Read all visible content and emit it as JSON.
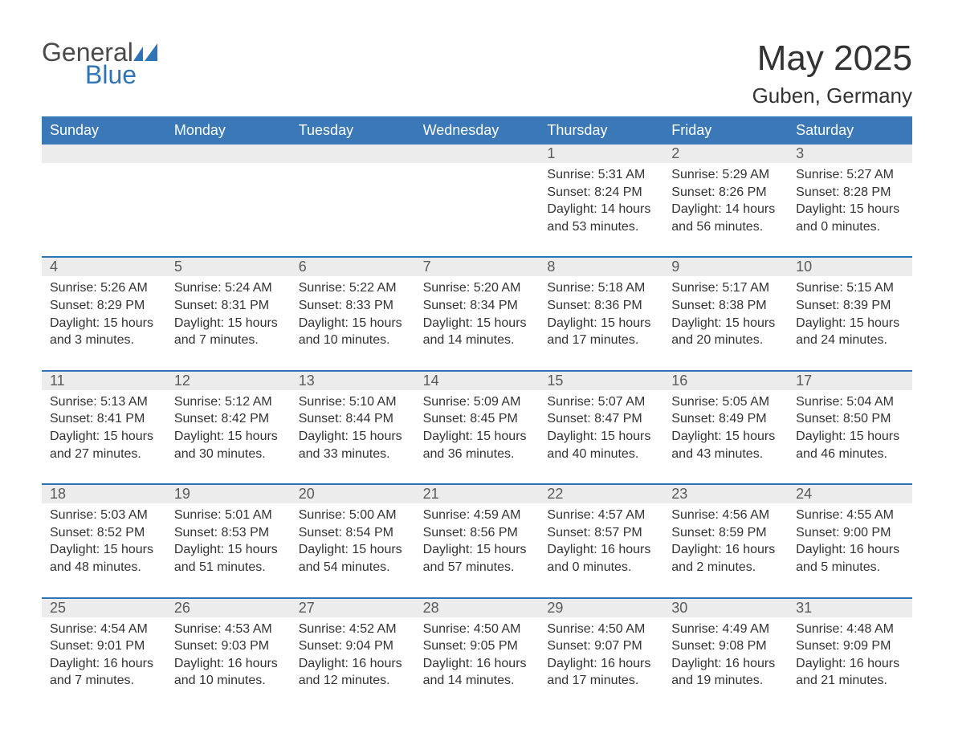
{
  "logo": {
    "text1": "General",
    "text2": "Blue"
  },
  "title": "May 2025",
  "location": "Guben, Germany",
  "colors": {
    "header_bg": "#3a78b7",
    "header_text": "#ffffff",
    "rule": "#2f74b5",
    "daynum_bg": "#ececec",
    "text": "#333333",
    "logo_gray": "#4a4a4a",
    "logo_blue": "#2f74b5",
    "page_bg": "#ffffff"
  },
  "day_names": [
    "Sunday",
    "Monday",
    "Tuesday",
    "Wednesday",
    "Thursday",
    "Friday",
    "Saturday"
  ],
  "weeks": [
    {
      "days": [
        null,
        null,
        null,
        null,
        {
          "n": "1",
          "sunrise": "5:31 AM",
          "sunset": "8:24 PM",
          "daylight": "14 hours and 53 minutes."
        },
        {
          "n": "2",
          "sunrise": "5:29 AM",
          "sunset": "8:26 PM",
          "daylight": "14 hours and 56 minutes."
        },
        {
          "n": "3",
          "sunrise": "5:27 AM",
          "sunset": "8:28 PM",
          "daylight": "15 hours and 0 minutes."
        }
      ]
    },
    {
      "days": [
        {
          "n": "4",
          "sunrise": "5:26 AM",
          "sunset": "8:29 PM",
          "daylight": "15 hours and 3 minutes."
        },
        {
          "n": "5",
          "sunrise": "5:24 AM",
          "sunset": "8:31 PM",
          "daylight": "15 hours and 7 minutes."
        },
        {
          "n": "6",
          "sunrise": "5:22 AM",
          "sunset": "8:33 PM",
          "daylight": "15 hours and 10 minutes."
        },
        {
          "n": "7",
          "sunrise": "5:20 AM",
          "sunset": "8:34 PM",
          "daylight": "15 hours and 14 minutes."
        },
        {
          "n": "8",
          "sunrise": "5:18 AM",
          "sunset": "8:36 PM",
          "daylight": "15 hours and 17 minutes."
        },
        {
          "n": "9",
          "sunrise": "5:17 AM",
          "sunset": "8:38 PM",
          "daylight": "15 hours and 20 minutes."
        },
        {
          "n": "10",
          "sunrise": "5:15 AM",
          "sunset": "8:39 PM",
          "daylight": "15 hours and 24 minutes."
        }
      ]
    },
    {
      "days": [
        {
          "n": "11",
          "sunrise": "5:13 AM",
          "sunset": "8:41 PM",
          "daylight": "15 hours and 27 minutes."
        },
        {
          "n": "12",
          "sunrise": "5:12 AM",
          "sunset": "8:42 PM",
          "daylight": "15 hours and 30 minutes."
        },
        {
          "n": "13",
          "sunrise": "5:10 AM",
          "sunset": "8:44 PM",
          "daylight": "15 hours and 33 minutes."
        },
        {
          "n": "14",
          "sunrise": "5:09 AM",
          "sunset": "8:45 PM",
          "daylight": "15 hours and 36 minutes."
        },
        {
          "n": "15",
          "sunrise": "5:07 AM",
          "sunset": "8:47 PM",
          "daylight": "15 hours and 40 minutes."
        },
        {
          "n": "16",
          "sunrise": "5:05 AM",
          "sunset": "8:49 PM",
          "daylight": "15 hours and 43 minutes."
        },
        {
          "n": "17",
          "sunrise": "5:04 AM",
          "sunset": "8:50 PM",
          "daylight": "15 hours and 46 minutes."
        }
      ]
    },
    {
      "days": [
        {
          "n": "18",
          "sunrise": "5:03 AM",
          "sunset": "8:52 PM",
          "daylight": "15 hours and 48 minutes."
        },
        {
          "n": "19",
          "sunrise": "5:01 AM",
          "sunset": "8:53 PM",
          "daylight": "15 hours and 51 minutes."
        },
        {
          "n": "20",
          "sunrise": "5:00 AM",
          "sunset": "8:54 PM",
          "daylight": "15 hours and 54 minutes."
        },
        {
          "n": "21",
          "sunrise": "4:59 AM",
          "sunset": "8:56 PM",
          "daylight": "15 hours and 57 minutes."
        },
        {
          "n": "22",
          "sunrise": "4:57 AM",
          "sunset": "8:57 PM",
          "daylight": "16 hours and 0 minutes."
        },
        {
          "n": "23",
          "sunrise": "4:56 AM",
          "sunset": "8:59 PM",
          "daylight": "16 hours and 2 minutes."
        },
        {
          "n": "24",
          "sunrise": "4:55 AM",
          "sunset": "9:00 PM",
          "daylight": "16 hours and 5 minutes."
        }
      ]
    },
    {
      "days": [
        {
          "n": "25",
          "sunrise": "4:54 AM",
          "sunset": "9:01 PM",
          "daylight": "16 hours and 7 minutes."
        },
        {
          "n": "26",
          "sunrise": "4:53 AM",
          "sunset": "9:03 PM",
          "daylight": "16 hours and 10 minutes."
        },
        {
          "n": "27",
          "sunrise": "4:52 AM",
          "sunset": "9:04 PM",
          "daylight": "16 hours and 12 minutes."
        },
        {
          "n": "28",
          "sunrise": "4:50 AM",
          "sunset": "9:05 PM",
          "daylight": "16 hours and 14 minutes."
        },
        {
          "n": "29",
          "sunrise": "4:50 AM",
          "sunset": "9:07 PM",
          "daylight": "16 hours and 17 minutes."
        },
        {
          "n": "30",
          "sunrise": "4:49 AM",
          "sunset": "9:08 PM",
          "daylight": "16 hours and 19 minutes."
        },
        {
          "n": "31",
          "sunrise": "4:48 AM",
          "sunset": "9:09 PM",
          "daylight": "16 hours and 21 minutes."
        }
      ]
    }
  ],
  "labels": {
    "sunrise": "Sunrise:",
    "sunset": "Sunset:",
    "daylight": "Daylight:"
  }
}
